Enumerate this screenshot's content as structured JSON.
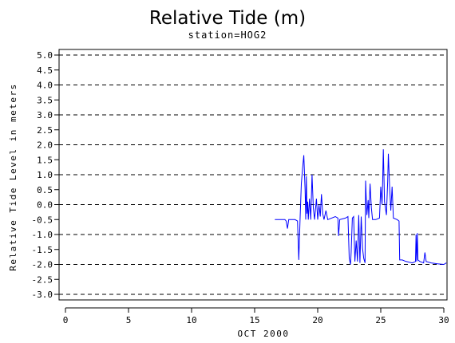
{
  "chart_data": {
    "type": "line",
    "title": "Relative Tide (m)",
    "subtitle": "station=HOG2",
    "xlabel": "OCT 2000",
    "ylabel": "Relative Tide Level in meters",
    "xlim": [
      0,
      30
    ],
    "ylim": [
      -3.0,
      5.0
    ],
    "x_ticks": [
      "0",
      "5",
      "10",
      "15",
      "20",
      "25",
      "30"
    ],
    "y_ticks": [
      "5.0",
      "4.5",
      "4.0",
      "3.5",
      "3.0",
      "2.5",
      "2.0",
      "1.5",
      "1.0",
      "0.5",
      "0.0",
      "-0.5",
      "-1.0",
      "-1.5",
      "-2.0",
      "-2.5",
      "-3.0"
    ],
    "grid_dashed_at": [
      5.0,
      4.0,
      3.0,
      2.0,
      1.0,
      0.0,
      -1.0,
      -2.0,
      -3.0
    ],
    "line_color": "#0000ff",
    "series": [
      {
        "points": [
          [
            16.6,
            -0.5
          ],
          [
            17.4,
            -0.5
          ],
          [
            17.5,
            -0.55
          ],
          [
            17.6,
            -0.8
          ],
          [
            17.7,
            -0.5
          ],
          [
            18.2,
            -0.5
          ],
          [
            18.4,
            -0.55
          ],
          [
            18.5,
            -1.85
          ],
          [
            18.6,
            -0.5
          ],
          [
            18.7,
            0.7
          ],
          [
            18.8,
            1.2
          ],
          [
            18.9,
            1.65
          ],
          [
            19.0,
            0.5
          ],
          [
            19.05,
            -0.5
          ],
          [
            19.1,
            0.95
          ],
          [
            19.15,
            -0.3
          ],
          [
            19.2,
            0.1
          ],
          [
            19.25,
            -0.5
          ],
          [
            19.35,
            0.2
          ],
          [
            19.45,
            -0.5
          ],
          [
            19.55,
            1.0
          ],
          [
            19.65,
            -0.1
          ],
          [
            19.75,
            -0.5
          ],
          [
            19.9,
            0.2
          ],
          [
            20.0,
            -0.5
          ],
          [
            20.1,
            0.0
          ],
          [
            20.2,
            -0.4
          ],
          [
            20.3,
            0.35
          ],
          [
            20.4,
            -0.3
          ],
          [
            20.5,
            -0.5
          ],
          [
            20.65,
            -0.2
          ],
          [
            20.8,
            -0.5
          ],
          [
            21.4,
            -0.4
          ],
          [
            21.6,
            -0.45
          ],
          [
            21.65,
            -1.05
          ],
          [
            21.75,
            -0.5
          ],
          [
            22.2,
            -0.45
          ],
          [
            22.4,
            -0.4
          ],
          [
            22.5,
            -1.8
          ],
          [
            22.6,
            -2.0
          ],
          [
            22.65,
            -1.6
          ],
          [
            22.75,
            -0.45
          ],
          [
            22.85,
            -0.4
          ],
          [
            22.95,
            -1.9
          ],
          [
            23.05,
            -1.2
          ],
          [
            23.15,
            -1.9
          ],
          [
            23.25,
            -0.35
          ],
          [
            23.35,
            -1.95
          ],
          [
            23.45,
            -0.4
          ],
          [
            23.55,
            -1.45
          ],
          [
            23.65,
            -1.8
          ],
          [
            23.75,
            -1.95
          ],
          [
            23.8,
            0.8
          ],
          [
            23.9,
            -0.35
          ],
          [
            24.0,
            0.15
          ],
          [
            24.05,
            -0.45
          ],
          [
            24.15,
            0.7
          ],
          [
            24.25,
            -0.1
          ],
          [
            24.35,
            -0.5
          ],
          [
            24.6,
            -0.5
          ],
          [
            24.9,
            -0.45
          ],
          [
            25.0,
            0.6
          ],
          [
            25.1,
            0.0
          ],
          [
            25.15,
            0.8
          ],
          [
            25.2,
            1.85
          ],
          [
            25.3,
            0.1
          ],
          [
            25.45,
            -0.35
          ],
          [
            25.55,
            0.8
          ],
          [
            25.6,
            1.7
          ],
          [
            25.7,
            0.6
          ],
          [
            25.8,
            -0.2
          ],
          [
            25.9,
            0.6
          ],
          [
            26.0,
            -0.45
          ],
          [
            26.3,
            -0.5
          ],
          [
            26.45,
            -0.55
          ],
          [
            26.5,
            -1.85
          ],
          [
            26.7,
            -1.85
          ],
          [
            27.0,
            -1.9
          ],
          [
            27.5,
            -1.95
          ],
          [
            27.75,
            -1.9
          ],
          [
            27.8,
            -1.0
          ],
          [
            27.85,
            -1.9
          ],
          [
            27.9,
            -0.95
          ],
          [
            27.95,
            -1.85
          ],
          [
            28.1,
            -1.9
          ],
          [
            28.4,
            -1.95
          ],
          [
            28.5,
            -1.6
          ],
          [
            28.6,
            -1.9
          ],
          [
            29.0,
            -1.95
          ],
          [
            29.5,
            -1.98
          ],
          [
            30.0,
            -2.0
          ],
          [
            30.2,
            -1.95
          ]
        ]
      }
    ]
  }
}
